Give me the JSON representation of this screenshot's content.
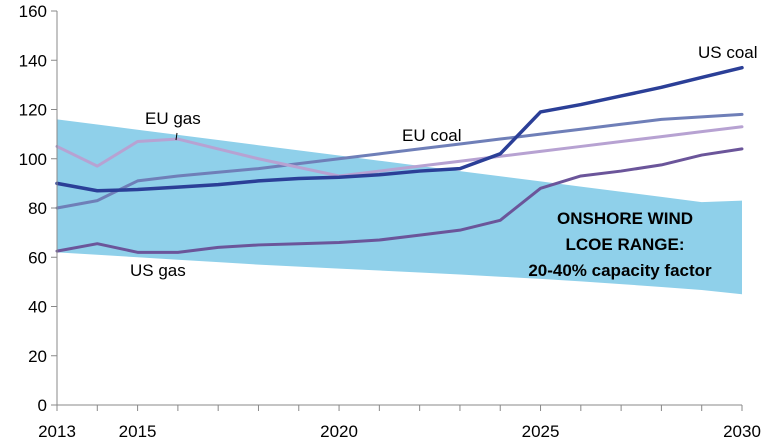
{
  "chart_data": {
    "type": "line",
    "title": "",
    "xlabel": "",
    "ylabel": "",
    "xlim": [
      2013,
      2030
    ],
    "ylim": [
      0,
      160
    ],
    "y_ticks": [
      0,
      20,
      40,
      60,
      80,
      100,
      120,
      140,
      160
    ],
    "x_tick_labels": [
      "2013",
      "2015",
      "2020",
      "2025",
      "2030"
    ],
    "x_tick_values": [
      2013,
      2015,
      2020,
      2025,
      2030
    ],
    "grid": false,
    "x": [
      2013,
      2014,
      2015,
      2016,
      2017,
      2018,
      2019,
      2020,
      2021,
      2022,
      2023,
      2024,
      2025,
      2026,
      2027,
      2028,
      2029,
      2030
    ],
    "band": {
      "name": "Onshore wind LCOE range",
      "label_lines": [
        "ONSHORE WIND",
        "LCOE RANGE:",
        "20-40% capacity factor"
      ],
      "color": "#8fd0ea",
      "upper": [
        116,
        113.9,
        111.8,
        109.7,
        107.6,
        105.5,
        103.4,
        101.3,
        99.2,
        97.1,
        95,
        92.9,
        90.8,
        88.7,
        86.6,
        84.5,
        82.4,
        83
      ],
      "lower": [
        62,
        61,
        60,
        59,
        58,
        57,
        56.2,
        55.4,
        54.6,
        53.8,
        53,
        52.1,
        51.2,
        50.2,
        49.1,
        47.9,
        46.7,
        45
      ]
    },
    "series": [
      {
        "name": "EU coal",
        "label": "EU coal",
        "color": "#6f7fb8",
        "values": [
          80,
          83,
          91,
          93,
          94.5,
          96,
          98,
          100,
          102,
          104,
          106,
          108,
          110,
          112,
          114,
          116,
          117,
          118
        ]
      },
      {
        "name": "EU gas",
        "label": "EU gas",
        "color": "#b7a2d2",
        "values": [
          105,
          97,
          107,
          108,
          104,
          100,
          96.5,
          93,
          95,
          97,
          99,
          101,
          103,
          105,
          107,
          109,
          111,
          113
        ]
      },
      {
        "name": "US coal",
        "label": "US coal",
        "color": "#2b3f97",
        "values": [
          90,
          87,
          87.5,
          88.5,
          89.5,
          91,
          92,
          92.5,
          93.5,
          95,
          96,
          102,
          119,
          122,
          125.5,
          129,
          133,
          137
        ]
      },
      {
        "name": "US gas",
        "label": "US gas",
        "color": "#6b559a",
        "values": [
          62.5,
          65.5,
          62,
          62,
          64,
          65,
          65.5,
          66,
          67,
          69,
          71,
          75,
          88,
          93,
          95,
          97.5,
          101.5,
          104
        ]
      }
    ]
  }
}
